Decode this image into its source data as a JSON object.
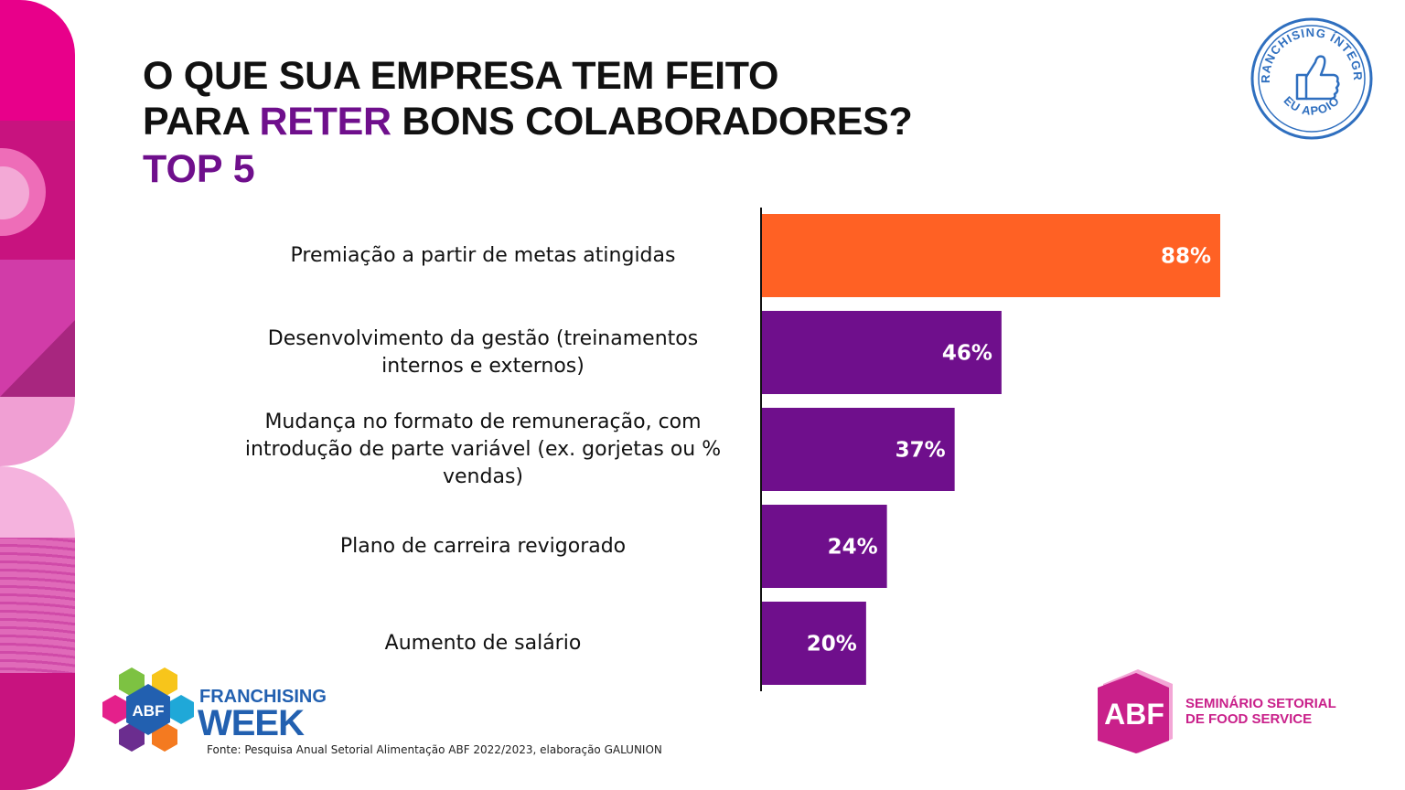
{
  "header": {
    "title_line1": "O QUE SUA EMPRESA TEM FEITO",
    "title_line2_pre": "PARA ",
    "title_line2_hl": "RETER",
    "title_line2_post": " BONS COLABORADORES?",
    "subtitle": "TOP 5"
  },
  "colors": {
    "highlight_bar": "#ff6124",
    "bar": "#6f0f8c",
    "title_accent": "#6f0f8c",
    "strip": [
      "#e8008a",
      "#c8137f",
      "#ee6db8",
      "#d13ca8",
      "#f09fd3",
      "#e06ab9"
    ]
  },
  "chart_data": {
    "type": "bar",
    "orientation": "horizontal",
    "categories": [
      "Premiação a partir de metas atingidas",
      "Desenvolvimento da gestão (treinamentos internos e externos)",
      "Mudança no formato de remuneração, com introdução de parte variável (ex. gorjetas ou % vendas)",
      "Plano de carreira revigorado",
      "Aumento de salário"
    ],
    "category_lines": [
      [
        "Premiação a partir de metas atingidas"
      ],
      [
        "Desenvolvimento da gestão (treinamentos",
        "internos e externos)"
      ],
      [
        "Mudança no formato de remuneração, com",
        "introdução de parte variável (ex. gorjetas ou %",
        "vendas)"
      ],
      [
        "Plano de carreira revigorado"
      ],
      [
        "Aumento de salário"
      ]
    ],
    "values": [
      88,
      46,
      37,
      24,
      20
    ],
    "value_labels": [
      "88%",
      "46%",
      "37%",
      "24%",
      "20%"
    ],
    "highlight_index": 0,
    "xlim": [
      0,
      100
    ],
    "grid": false,
    "legend": "none"
  },
  "seal": {
    "text_top": "FRANCHISING ÍNTEGRO",
    "text_bottom": "EU APOIO",
    "icon": "thumbs-up-icon"
  },
  "footer": {
    "fw_badge": "ABF",
    "fw_line1": "FRANCHISING",
    "fw_line2": "WEEK",
    "source": "Fonte: Pesquisa Anual Setorial Alimentação ABF 2022/2023, elaboração GALUNION",
    "abf_badge": "ABF",
    "abf_line1": "SEMINÁRIO SETORIAL",
    "abf_line2": "DE FOOD SERVICE"
  }
}
